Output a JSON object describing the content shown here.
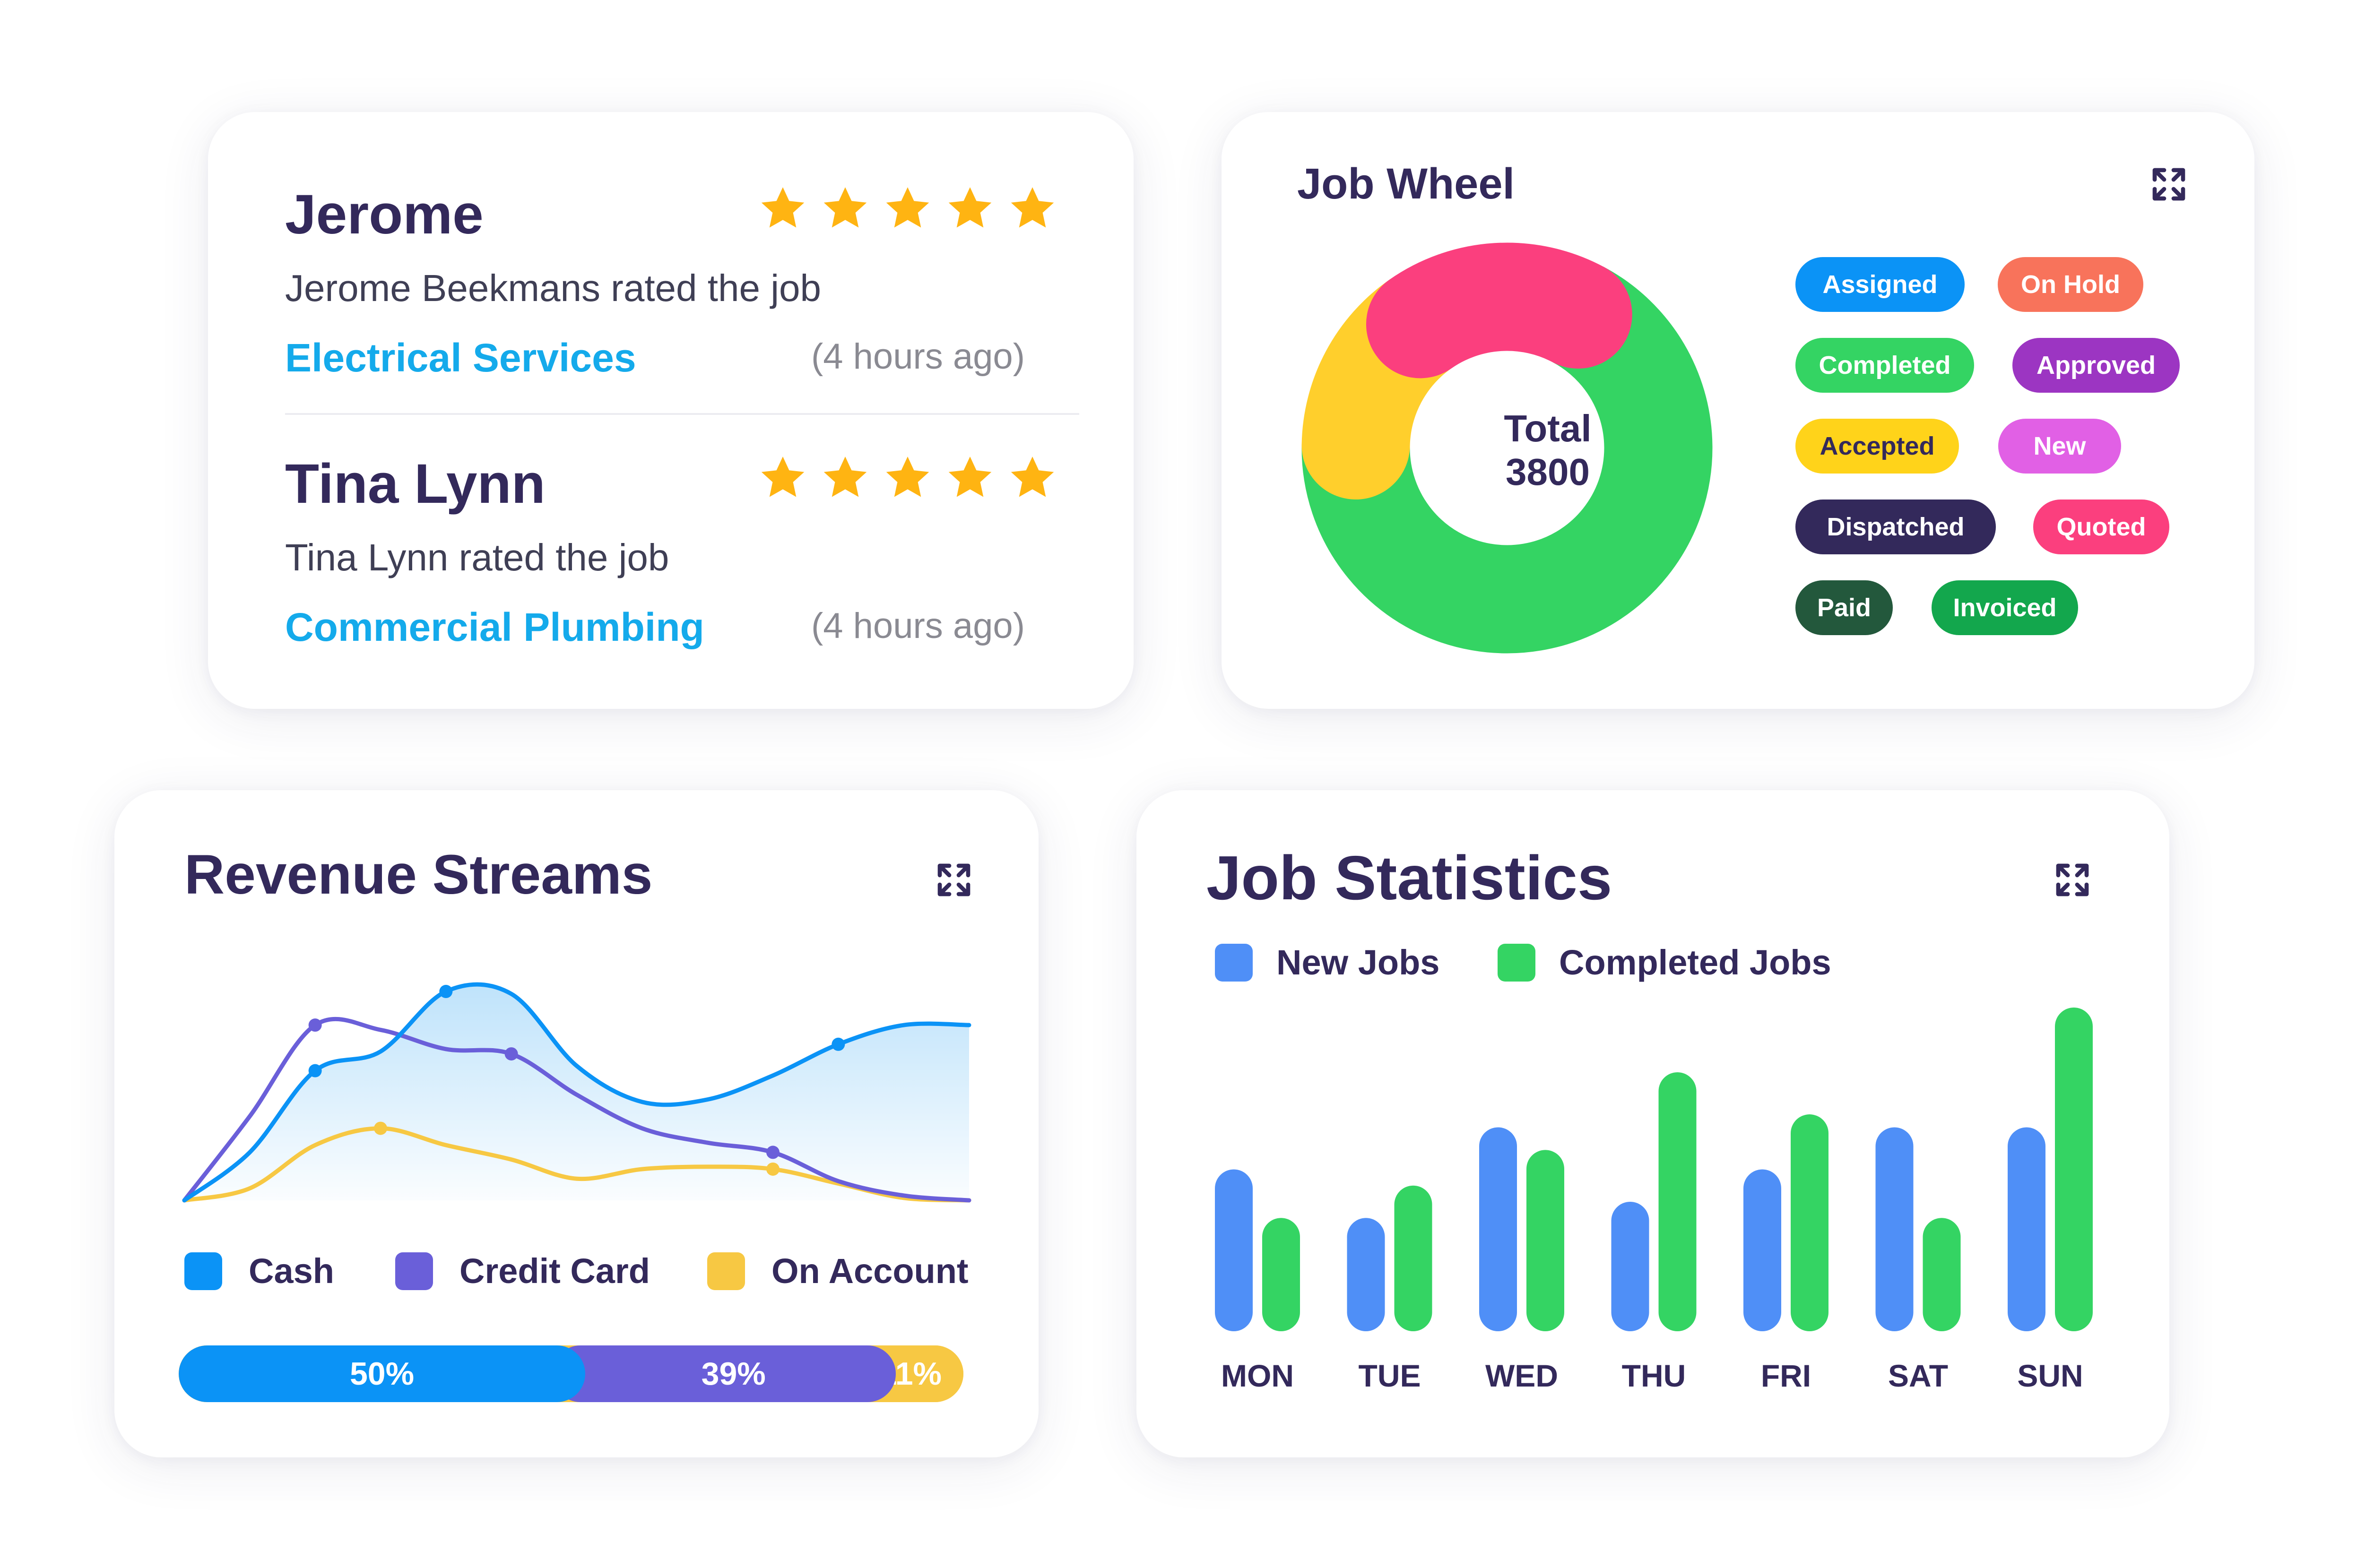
{
  "colors": {
    "title": "#33295b",
    "link": "#14aaeb",
    "star": "#ffb412",
    "muted": "#8a8a92",
    "cash": "#0b93f6",
    "credit_card": "#6a5fd9",
    "on_account": "#f7c843",
    "new_jobs": "#4f8ff7",
    "completed_jobs": "#34d463"
  },
  "reviews": [
    {
      "name": "Jerome",
      "rating": 5,
      "text": "Jerome Beekmans rated the job",
      "job": "Electrical Services",
      "time": "(4 hours ago)"
    },
    {
      "name": "Tina Lynn",
      "rating": 5,
      "text": "Tina Lynn rated the job",
      "job": "Commercial Plumbing",
      "time": "(4 hours ago)"
    }
  ],
  "job_wheel": {
    "title": "Job Wheel",
    "expand_icon": "expand-icon",
    "total_label": "Total",
    "total_value": "3800",
    "statuses": [
      {
        "label": "Assigned",
        "color": "#0b93f6"
      },
      {
        "label": "On Hold",
        "color": "#f8735b"
      },
      {
        "label": "Completed",
        "color": "#34d463"
      },
      {
        "label": "Approved",
        "color": "#9c35c2"
      },
      {
        "label": "Accepted",
        "color": "#ffd31a",
        "text_color": "#33295b"
      },
      {
        "label": "New",
        "color": "#e160e5"
      },
      {
        "label": "Dispatched",
        "color": "#33295b"
      },
      {
        "label": "Quoted",
        "color": "#fb3f7e"
      },
      {
        "label": "Paid",
        "color": "#23583c"
      },
      {
        "label": "Invoiced",
        "color": "#13a74d"
      }
    ]
  },
  "revenue": {
    "title": "Revenue Streams",
    "expand_icon": "expand-icon",
    "legend": [
      {
        "label": "Cash",
        "color": "#0b93f6"
      },
      {
        "label": "Credit Card",
        "color": "#6a5fd9"
      },
      {
        "label": "On Account",
        "color": "#f7c843"
      }
    ],
    "breakdown": [
      {
        "label": "50%",
        "value": 50,
        "color": "#0b93f6"
      },
      {
        "label": "39%",
        "value": 39,
        "color": "#6a5fd9"
      },
      {
        "label": "11%",
        "value": 11,
        "color": "#f7c843"
      }
    ]
  },
  "job_statistics": {
    "title": "Job Statistics",
    "expand_icon": "expand-icon",
    "legend": [
      {
        "label": "New Jobs",
        "color": "#4f8ff7"
      },
      {
        "label": "Completed Jobs",
        "color": "#34d463"
      }
    ]
  },
  "chart_data": [
    {
      "type": "pie",
      "subtype": "donut",
      "title": "Job Wheel",
      "center_label": "Total 3800",
      "total": 3800,
      "slices": [
        {
          "color": "#34d463",
          "value": 2565
        },
        {
          "color": "#ffcf2c",
          "value": 570
        },
        {
          "color": "#fb3f7e",
          "value": 665
        }
      ]
    },
    {
      "type": "area",
      "title": "Revenue Streams",
      "x": [
        0,
        1,
        2,
        3,
        4,
        5,
        6,
        7,
        8,
        9,
        10,
        11,
        12
      ],
      "ylim": [
        0,
        100
      ],
      "grid": false,
      "series": [
        {
          "name": "Cash",
          "color": "#0b93f6",
          "values": [
            0,
            20,
            54,
            62,
            87,
            86,
            56,
            41,
            42,
            52,
            65,
            73,
            73
          ]
        },
        {
          "name": "Credit Card",
          "color": "#6a5fd9",
          "values": [
            0,
            35,
            73,
            71,
            63,
            61,
            44,
            30,
            24,
            20,
            8,
            2,
            0
          ]
        },
        {
          "name": "On Account",
          "color": "#f7c843",
          "values": [
            0,
            5,
            23,
            30,
            23,
            17,
            9,
            13,
            14,
            13,
            7,
            1,
            0
          ]
        }
      ]
    },
    {
      "type": "bar",
      "title": "Job Statistics",
      "categories": [
        "MON",
        "TUE",
        "WED",
        "THU",
        "FRI",
        "SAT",
        "SUN"
      ],
      "ylim": [
        0,
        100
      ],
      "series": [
        {
          "name": "New Jobs",
          "color": "#4f8ff7",
          "values": [
            50,
            35,
            63,
            40,
            50,
            63,
            63
          ]
        },
        {
          "name": "Completed Jobs",
          "color": "#34d463",
          "values": [
            35,
            45,
            56,
            80,
            67,
            35,
            100
          ]
        }
      ]
    }
  ]
}
